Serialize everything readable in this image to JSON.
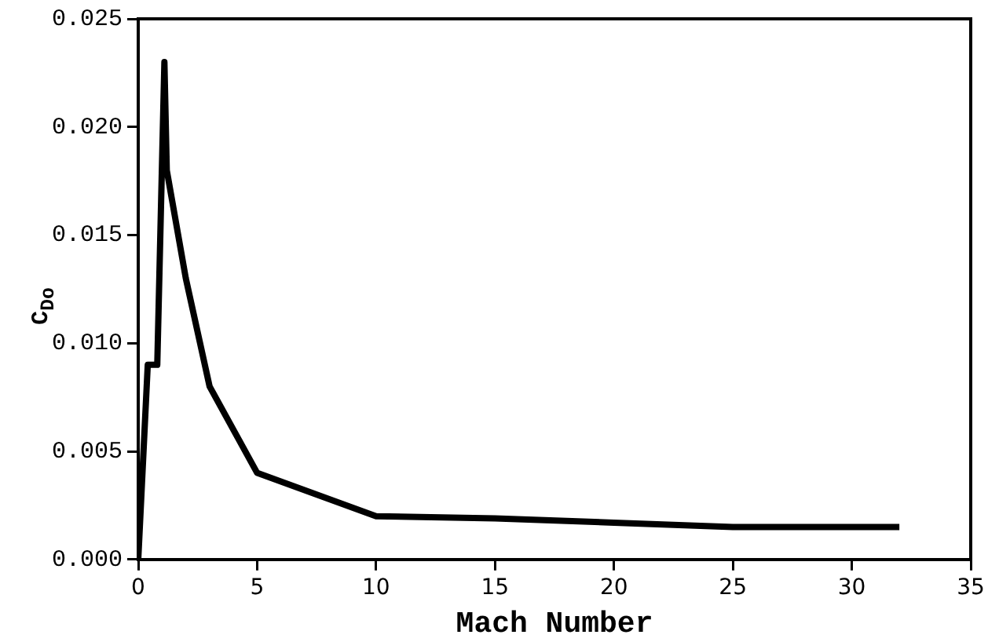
{
  "chart_data": {
    "type": "line",
    "xlabel": "Mach Number",
    "ylabel": "C$_{Do}$",
    "series": [
      {
        "color": "#000000",
        "x": [
          0,
          0.4,
          0.8,
          1.1,
          1.2,
          2,
          3,
          5,
          10,
          15,
          20,
          25,
          32
        ],
        "values": [
          0,
          0.009,
          0.009,
          0.023,
          0.018,
          0.013,
          0.008,
          0.004,
          0.002,
          0.0019,
          0.0017,
          0.0015,
          0.0015
        ]
      }
    ],
    "xlim": [
      0,
      35
    ],
    "xticks": [
      0,
      5,
      10,
      15,
      20,
      25,
      30,
      35
    ],
    "ylim": [
      0,
      0.025
    ],
    "yticks": [
      {
        "value": 0,
        "label": "0.000"
      },
      {
        "value": 0.005,
        "label": "0.005"
      },
      {
        "value": 0.01,
        "label": "0.010"
      },
      {
        "value": 0.015,
        "label": "0.015"
      },
      {
        "value": 0.02,
        "label": "0.020"
      },
      {
        "value": 0.025,
        "label": "0.025"
      }
    ],
    "grid": false,
    "legend": false,
    "marker": "none",
    "line_style": "solid"
  }
}
